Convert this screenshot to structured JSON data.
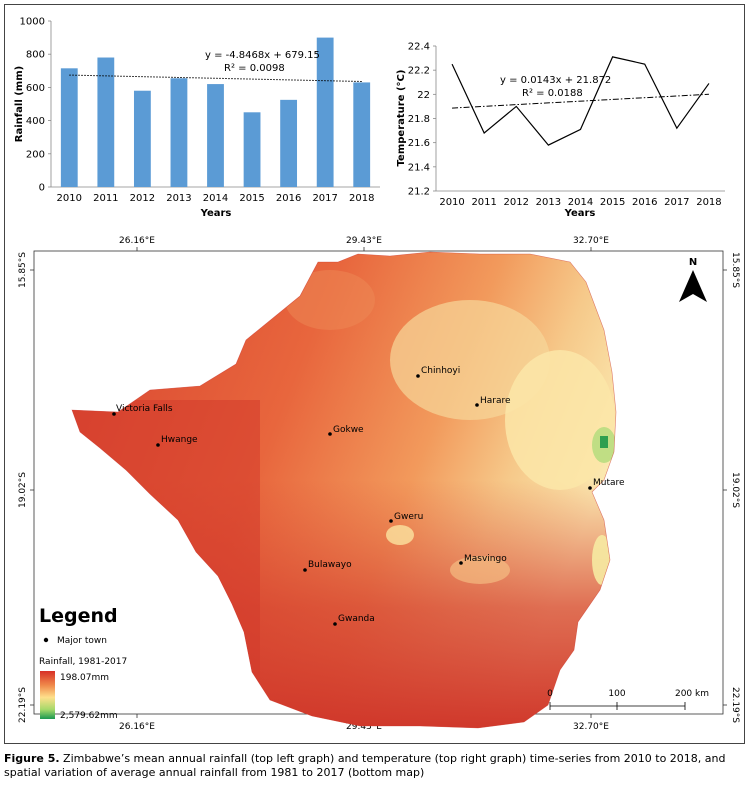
{
  "rainfall_chart": {
    "type": "bar",
    "categories": [
      "2010",
      "2011",
      "2012",
      "2013",
      "2014",
      "2015",
      "2016",
      "2017",
      "2018"
    ],
    "values": [
      715,
      780,
      580,
      655,
      620,
      450,
      525,
      900,
      630
    ],
    "trend": {
      "slope": -4.8468,
      "intercept": 679.15
    },
    "equation": "y = -4.8468x + 679.15",
    "r2": "R² = 0.0098",
    "ylabel": "Rainfall (mm)",
    "xlabel": "Years",
    "ylim": [
      0,
      1000
    ],
    "yticks": [
      "0",
      "200",
      "400",
      "600",
      "800",
      "1000"
    ],
    "color": "#5b9bd5"
  },
  "temperature_chart": {
    "type": "line",
    "categories": [
      "2010",
      "2011",
      "2012",
      "2013",
      "2014",
      "2015",
      "2016",
      "2017",
      "2018"
    ],
    "values": [
      22.25,
      21.68,
      21.9,
      21.58,
      21.71,
      22.31,
      22.25,
      21.72,
      22.09
    ],
    "trend": {
      "slope": 0.0143,
      "intercept": 21.872
    },
    "equation": "y = 0.0143x + 21.872",
    "r2": "R² = 0.0188",
    "ylabel": "Temperature (°C)",
    "xlabel": "Years",
    "ylim": [
      21.2,
      22.4
    ],
    "yticks": [
      "21.2",
      "21.4",
      "21.6",
      "21.8",
      "22",
      "22.2",
      "22.4"
    ]
  },
  "map": {
    "top_coords": [
      "26.16°E",
      "29.43°E",
      "32.70°E"
    ],
    "bottom_coords": [
      "26.16°E",
      "29.43°E",
      "32.70°E"
    ],
    "left_coords": [
      "15.85°S",
      "19.02°S",
      "22.19°S"
    ],
    "right_coords": [
      "15.85°S",
      "19.02°S",
      "22.19°S"
    ],
    "north": "N",
    "towns": [
      "Victoria Falls",
      "Hwange",
      "Gokwe",
      "Chinhoyi",
      "Harare",
      "Mutare",
      "Gweru",
      "Masvingo",
      "Bulawayo",
      "Gwanda"
    ],
    "legend": {
      "title": "Legend",
      "major_town": "Major town",
      "rainfall_title": "Rainfall, 1981-2017",
      "min": "198.07mm",
      "max": "2,579.62mm"
    },
    "scale": {
      "labels": [
        "0",
        "100",
        "200 km"
      ]
    },
    "colors": {
      "low": "#d73027",
      "mid": "#f4a259",
      "high": "#fef7c0",
      "wet": "#1a9850"
    }
  },
  "caption": {
    "label": "Figure 5.",
    "text": " Zimbabwe’s mean annual rainfall (top left graph) and temperature (top right graph) time-series from 2010 to 2018, and spatial variation of average annual rainfall from 1981 to 2017 (bottom map)"
  }
}
